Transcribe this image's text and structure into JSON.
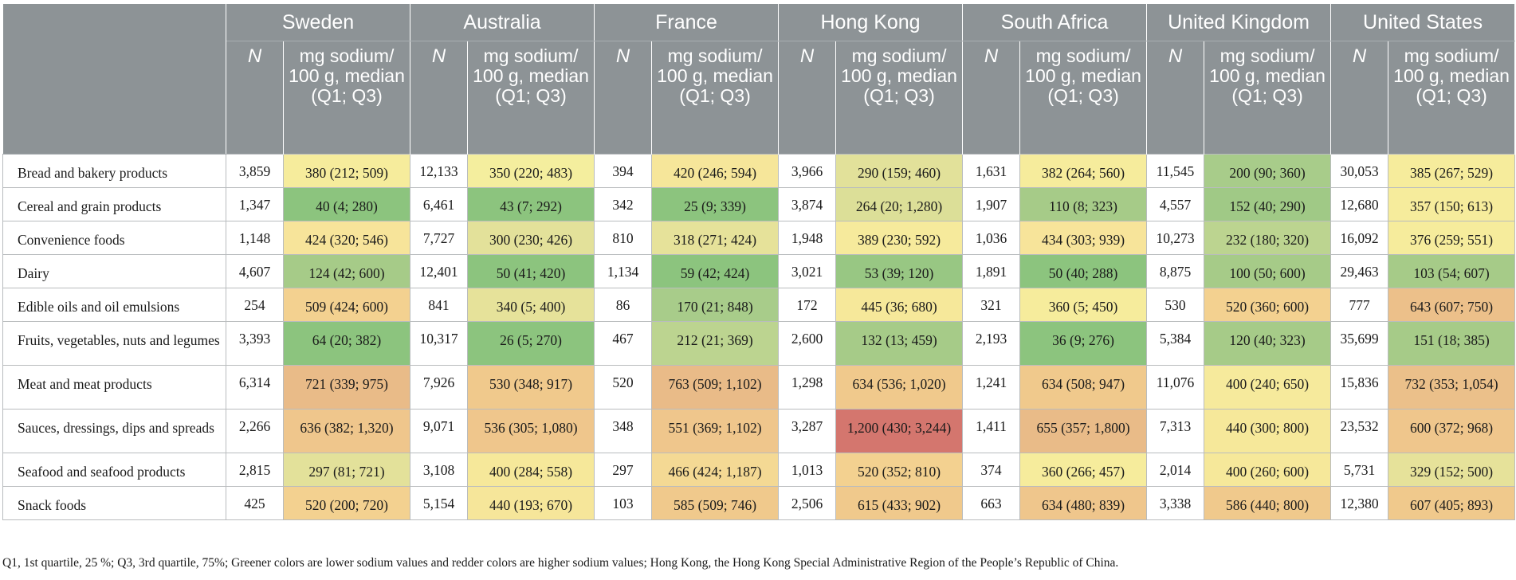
{
  "header": {
    "countries": [
      "Sweden",
      "Australia",
      "France",
      "Hong Kong",
      "South Africa",
      "United Kingdom",
      "United States"
    ],
    "n_label": "N",
    "value_label": "mg sodium/ 100 g, median (Q1; Q3)"
  },
  "rows": [
    {
      "category": "Bread and bakery products",
      "cells": [
        {
          "n": "3,859",
          "v": "380 (212; 509)",
          "color": "#f6ec9c"
        },
        {
          "n": "12,133",
          "v": "350 (220; 483)",
          "color": "#f4ee9e"
        },
        {
          "n": "394",
          "v": "420 (246; 594)",
          "color": "#f6e69a"
        },
        {
          "n": "3,966",
          "v": "290 (159; 460)",
          "color": "#e2e19a"
        },
        {
          "n": "1,631",
          "v": "382 (264; 560)",
          "color": "#f6ec9c"
        },
        {
          "n": "11,545",
          "v": "200 (90; 360)",
          "color": "#a8cc8a"
        },
        {
          "n": "30,053",
          "v": "385 (267; 529)",
          "color": "#f6ec9c"
        }
      ]
    },
    {
      "category": "Cereal and grain products",
      "cells": [
        {
          "n": "1,347",
          "v": "40 (4; 280)",
          "color": "#8cc47e"
        },
        {
          "n": "6,461",
          "v": "43 (7; 292)",
          "color": "#8cc47e"
        },
        {
          "n": "342",
          "v": "25 (9; 339)",
          "color": "#8cc47e"
        },
        {
          "n": "3,874",
          "v": "264 (20; 1,280)",
          "color": "#dcdf98"
        },
        {
          "n": "1,907",
          "v": "110 (8; 323)",
          "color": "#a6cb88"
        },
        {
          "n": "4,557",
          "v": "152 (40; 290)",
          "color": "#a0c986"
        },
        {
          "n": "12,680",
          "v": "357 (150; 613)",
          "color": "#f6ec9c"
        }
      ]
    },
    {
      "category": "Convenience foods",
      "cells": [
        {
          "n": "1,148",
          "v": "424 (320; 546)",
          "color": "#f7e49a"
        },
        {
          "n": "7,727",
          "v": "300 (230; 426)",
          "color": "#e3e19a"
        },
        {
          "n": "810",
          "v": "318 (271; 424)",
          "color": "#e6e29a"
        },
        {
          "n": "1,948",
          "v": "389 (230; 592)",
          "color": "#f6ea9c"
        },
        {
          "n": "1,036",
          "v": "434 (303; 939)",
          "color": "#f7e49a"
        },
        {
          "n": "10,273",
          "v": "232 (180; 320)",
          "color": "#bcd490"
        },
        {
          "n": "16,092",
          "v": "376 (259; 551)",
          "color": "#f6ec9c"
        }
      ]
    },
    {
      "category": "Dairy",
      "cells": [
        {
          "n": "4,607",
          "v": "124 (42; 600)",
          "color": "#a6cb88"
        },
        {
          "n": "12,401",
          "v": "50 (41; 420)",
          "color": "#8cc47e"
        },
        {
          "n": "1,134",
          "v": "59 (42; 424)",
          "color": "#8cc47e"
        },
        {
          "n": "3,021",
          "v": "53 (39; 120)",
          "color": "#98c783"
        },
        {
          "n": "1,891",
          "v": "50 (40; 288)",
          "color": "#8cc47e"
        },
        {
          "n": "8,875",
          "v": "100 (50; 600)",
          "color": "#a6cb88"
        },
        {
          "n": "29,463",
          "v": "103 (54; 607)",
          "color": "#a6cb88"
        }
      ]
    },
    {
      "category": "Edible oils and oil emulsions",
      "cells": [
        {
          "n": "254",
          "v": "509 (424; 600)",
          "color": "#f3d190"
        },
        {
          "n": "841",
          "v": "340 (5; 400)",
          "color": "#e6e29a"
        },
        {
          "n": "86",
          "v": "170 (21; 848)",
          "color": "#a8cc8a"
        },
        {
          "n": "172",
          "v": "445 (36; 680)",
          "color": "#f6e89a"
        },
        {
          "n": "321",
          "v": "360 (5; 450)",
          "color": "#f6ec9c"
        },
        {
          "n": "530",
          "v": "520 (360; 600)",
          "color": "#f3d190"
        },
        {
          "n": "777",
          "v": "643 (607; 750)",
          "color": "#ecc08a"
        }
      ]
    },
    {
      "category": "Fruits, vegetables, nuts and legumes",
      "tall": true,
      "cells": [
        {
          "n": "3,393",
          "v": "64 (20; 382)",
          "color": "#8cc47e"
        },
        {
          "n": "10,317",
          "v": "26 (5; 270)",
          "color": "#8cc47e"
        },
        {
          "n": "467",
          "v": "212 (21; 369)",
          "color": "#bcd490"
        },
        {
          "n": "2,600",
          "v": "132 (13; 459)",
          "color": "#a6cb88"
        },
        {
          "n": "2,193",
          "v": "36 (9; 276)",
          "color": "#8cc47e"
        },
        {
          "n": "5,384",
          "v": "120 (40; 323)",
          "color": "#a6cb88"
        },
        {
          "n": "35,699",
          "v": "151 (18; 385)",
          "color": "#a6cb88"
        }
      ]
    },
    {
      "category": "Meat and meat products",
      "tall": true,
      "cells": [
        {
          "n": "6,314",
          "v": "721 (339; 975)",
          "color": "#e9bb88"
        },
        {
          "n": "7,926",
          "v": "530 (348; 917)",
          "color": "#f0c98c"
        },
        {
          "n": "520",
          "v": "763 (509; 1,102)",
          "color": "#e9bb88"
        },
        {
          "n": "1,298",
          "v": "634 (536; 1,020)",
          "color": "#f0c98c"
        },
        {
          "n": "1,241",
          "v": "634 (508; 947)",
          "color": "#f0c98c"
        },
        {
          "n": "11,076",
          "v": "400 (240; 650)",
          "color": "#f6ea9c"
        },
        {
          "n": "15,836",
          "v": "732 (353; 1,054)",
          "color": "#ebc08a"
        }
      ]
    },
    {
      "category": "Sauces, dressings, dips and spreads",
      "tall": true,
      "cells": [
        {
          "n": "2,266",
          "v": "636 (382; 1,320)",
          "color": "#efc68c"
        },
        {
          "n": "9,071",
          "v": "536 (305; 1,080)",
          "color": "#efc68c"
        },
        {
          "n": "348",
          "v": "551 (369; 1,102)",
          "color": "#efc68c"
        },
        {
          "n": "3,287",
          "v": "1,200 (430; 3,244)",
          "color": "#d4766e"
        },
        {
          "n": "1,411",
          "v": "655 (357; 1,800)",
          "color": "#e9bb88"
        },
        {
          "n": "7,313",
          "v": "440 (300; 800)",
          "color": "#f6e89a"
        },
        {
          "n": "23,532",
          "v": "600 (372; 968)",
          "color": "#efc68c"
        }
      ]
    },
    {
      "category": "Seafood and seafood products",
      "cells": [
        {
          "n": "2,815",
          "v": "297 (81; 721)",
          "color": "#e3e19a"
        },
        {
          "n": "3,108",
          "v": "400 (284; 558)",
          "color": "#f6e89a"
        },
        {
          "n": "297",
          "v": "466 (424; 1,187)",
          "color": "#f4d994"
        },
        {
          "n": "1,013",
          "v": "520 (352; 810)",
          "color": "#f3d190"
        },
        {
          "n": "374",
          "v": "360 (266; 457)",
          "color": "#f6ec9c"
        },
        {
          "n": "2,014",
          "v": "400 (260; 600)",
          "color": "#f6e89a"
        },
        {
          "n": "5,731",
          "v": "329 (152; 500)",
          "color": "#e6e29a"
        }
      ]
    },
    {
      "category": "Snack foods",
      "cells": [
        {
          "n": "425",
          "v": "520 (200; 720)",
          "color": "#f3d190"
        },
        {
          "n": "5,154",
          "v": "440 (193; 670)",
          "color": "#f6e69a"
        },
        {
          "n": "103",
          "v": "585 (509; 746)",
          "color": "#f0c98c"
        },
        {
          "n": "2,506",
          "v": "615 (433; 902)",
          "color": "#f0c98c"
        },
        {
          "n": "663",
          "v": "634 (480; 839)",
          "color": "#efc68c"
        },
        {
          "n": "3,338",
          "v": "586 (440; 800)",
          "color": "#f0c98c"
        },
        {
          "n": "12,380",
          "v": "607 (405; 893)",
          "color": "#f0c98c"
        }
      ]
    }
  ],
  "footnote": "Q1, 1st quartile, 25 %; Q3, 3rd quartile, 75%; Greener colors are lower sodium values and redder colors are higher sodium values; Hong Kong, the Hong Kong Special Administrative Region of the People’s Republic of China."
}
